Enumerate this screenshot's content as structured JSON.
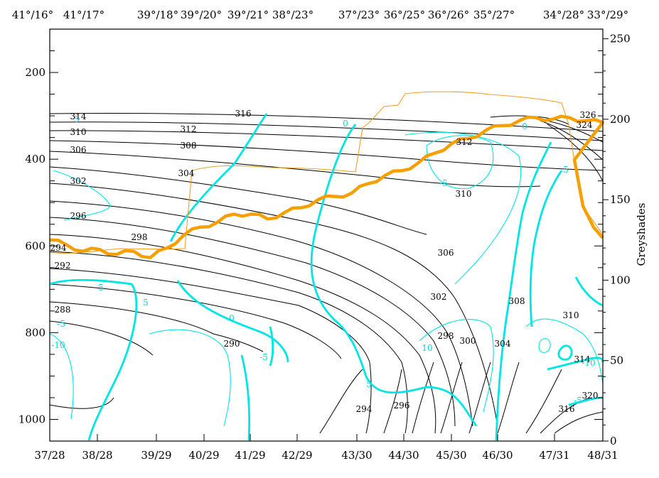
{
  "chart_data": {
    "type": "contour",
    "top_labels": [
      "41°/16°",
      "41°/17°",
      "39°/18°",
      "39°/20°",
      "39°/21°",
      "38°/23°",
      "37°/23°",
      "36°/25°",
      "36°/26°",
      "35°/27°",
      "34°/28°",
      "33°/29°"
    ],
    "bottom_labels": [
      "37/28",
      "38/28",
      "39/29",
      "40/29",
      "41/29",
      "42/29",
      "43/30",
      "44/30",
      "45/30",
      "46/30",
      "47/31",
      "48/31"
    ],
    "left_axis": {
      "ticks": [
        200,
        400,
        600,
        800,
        1000
      ],
      "range": [
        1050,
        100
      ],
      "inverted": true
    },
    "right_axis": {
      "label": "Greyshades",
      "ticks": [
        0,
        50,
        100,
        150,
        200,
        250
      ],
      "range": [
        0,
        256
      ]
    },
    "black_isolines": [
      "316",
      "314",
      "312",
      "310",
      "308",
      "306",
      "304",
      "302",
      "298",
      "296",
      "294",
      "292",
      "290",
      "288",
      "294",
      "296",
      "298",
      "300",
      "302",
      "304",
      "306",
      "308",
      "310",
      "310",
      "312",
      "314",
      "316",
      "320",
      "324",
      "326"
    ],
    "cyan_isolines": [
      "5",
      "0",
      "-5",
      "-10",
      "5",
      "0",
      "-5",
      "10",
      "5",
      "0",
      "5",
      "-5",
      "-10",
      "-5",
      "5"
    ],
    "orange_thick_series": {
      "x": [
        0,
        3,
        6,
        9,
        12,
        15,
        18,
        21,
        24,
        27,
        30,
        33,
        36,
        39,
        42,
        45,
        48,
        51,
        54,
        57,
        60,
        63,
        66,
        69,
        72,
        75,
        78,
        81,
        84,
        87,
        90,
        93,
        96,
        99
      ],
      "y": [
        125,
        122,
        118,
        119,
        116,
        118,
        114,
        120,
        128,
        133,
        136,
        141,
        141,
        138,
        142,
        145,
        150,
        152,
        154,
        160,
        165,
        168,
        173,
        179,
        185,
        188,
        193,
        196,
        199,
        201,
        200,
        201,
        199,
        198
      ]
    }
  }
}
